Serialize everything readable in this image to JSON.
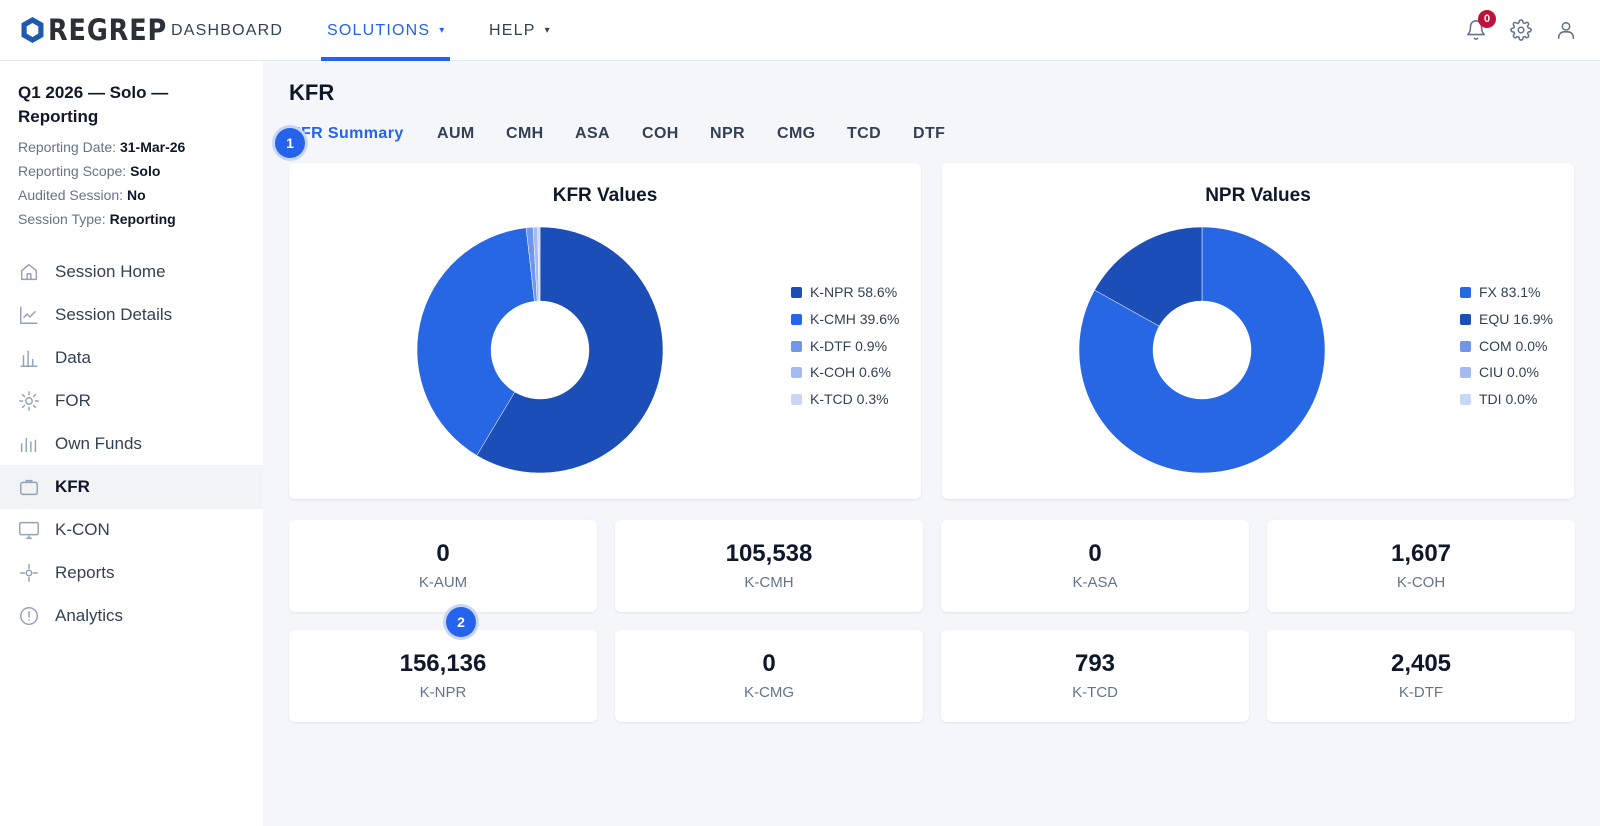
{
  "header": {
    "logo_text": "REGREP",
    "nav": [
      {
        "label": "DASHBOARD"
      },
      {
        "label": "SOLUTIONS",
        "caret": "▾"
      },
      {
        "label": "HELP",
        "caret": "▾"
      }
    ],
    "notification_count": "0",
    "icons": [
      "bell-icon",
      "gear-icon",
      "user-icon"
    ]
  },
  "sidebar": {
    "session_title": "Q1 2026 — Solo — Reporting",
    "meta": [
      {
        "label": "Reporting Date:",
        "value": "31-Mar-26"
      },
      {
        "label": "Reporting Scope:",
        "value": "Solo"
      },
      {
        "label": "Audited Session:",
        "value": "No"
      },
      {
        "label": "Session Type:",
        "value": "Reporting"
      }
    ],
    "items": [
      {
        "label": "Session Home",
        "icon": "home-icon"
      },
      {
        "label": "Session Details",
        "icon": "line-chart-icon"
      },
      {
        "label": "Data",
        "icon": "bar-chart-icon"
      },
      {
        "label": "FOR",
        "icon": "sun-icon"
      },
      {
        "label": "Own Funds",
        "icon": "bars-icon"
      },
      {
        "label": "KFR",
        "icon": "briefcase-icon",
        "active": true
      },
      {
        "label": "K-CON",
        "icon": "monitor-icon"
      },
      {
        "label": "Reports",
        "icon": "crosshair-icon"
      },
      {
        "label": "Analytics",
        "icon": "alert-circle-icon"
      }
    ]
  },
  "main": {
    "title": "KFR",
    "tabs": [
      {
        "label": "KFR Summary",
        "active": true
      },
      {
        "label": "AUM"
      },
      {
        "label": "CMH"
      },
      {
        "label": "ASA"
      },
      {
        "label": "COH"
      },
      {
        "label": "NPR"
      },
      {
        "label": "CMG"
      },
      {
        "label": "TCD"
      },
      {
        "label": "DTF"
      }
    ],
    "markers": [
      "1",
      "2"
    ],
    "stats": [
      {
        "value": "0",
        "label": "K-AUM"
      },
      {
        "value": "105,538",
        "label": "K-CMH"
      },
      {
        "value": "0",
        "label": "K-ASA"
      },
      {
        "value": "1,607",
        "label": "K-COH"
      },
      {
        "value": "156,136",
        "label": "K-NPR"
      },
      {
        "value": "0",
        "label": "K-CMG"
      },
      {
        "value": "793",
        "label": "K-TCD"
      },
      {
        "value": "2,405",
        "label": "K-DTF"
      }
    ]
  },
  "chart_data": [
    {
      "type": "pie",
      "title": "KFR Values",
      "donut": true,
      "legend_position": "right",
      "categories": [
        "K-NPR",
        "K-CMH",
        "K-DTF",
        "K-COH",
        "K-TCD"
      ],
      "values": [
        58.6,
        39.6,
        0.9,
        0.6,
        0.3
      ],
      "legend_labels": [
        "K-NPR 58.6%",
        "K-CMH 39.6%",
        "K-DTF 0.9%",
        "K-COH 0.6%",
        "K-TCD 0.3%"
      ],
      "colors": [
        "#1c4eb8",
        "#2867e3",
        "#7096ea",
        "#a4bbf2",
        "#c8d6f7"
      ]
    },
    {
      "type": "pie",
      "title": "NPR Values",
      "donut": true,
      "legend_position": "right",
      "categories": [
        "FX",
        "EQU",
        "COM",
        "CIU",
        "TDI"
      ],
      "values": [
        83.1,
        16.9,
        0.0,
        0.0,
        0.0
      ],
      "legend_labels": [
        "FX 83.1%",
        "EQU 16.9%",
        "COM 0.0%",
        "CIU 0.0%",
        "TDI 0.0%"
      ],
      "colors": [
        "#2867e3",
        "#1c4eb8",
        "#7096ea",
        "#a4bbf2",
        "#c8d6f7"
      ]
    }
  ]
}
